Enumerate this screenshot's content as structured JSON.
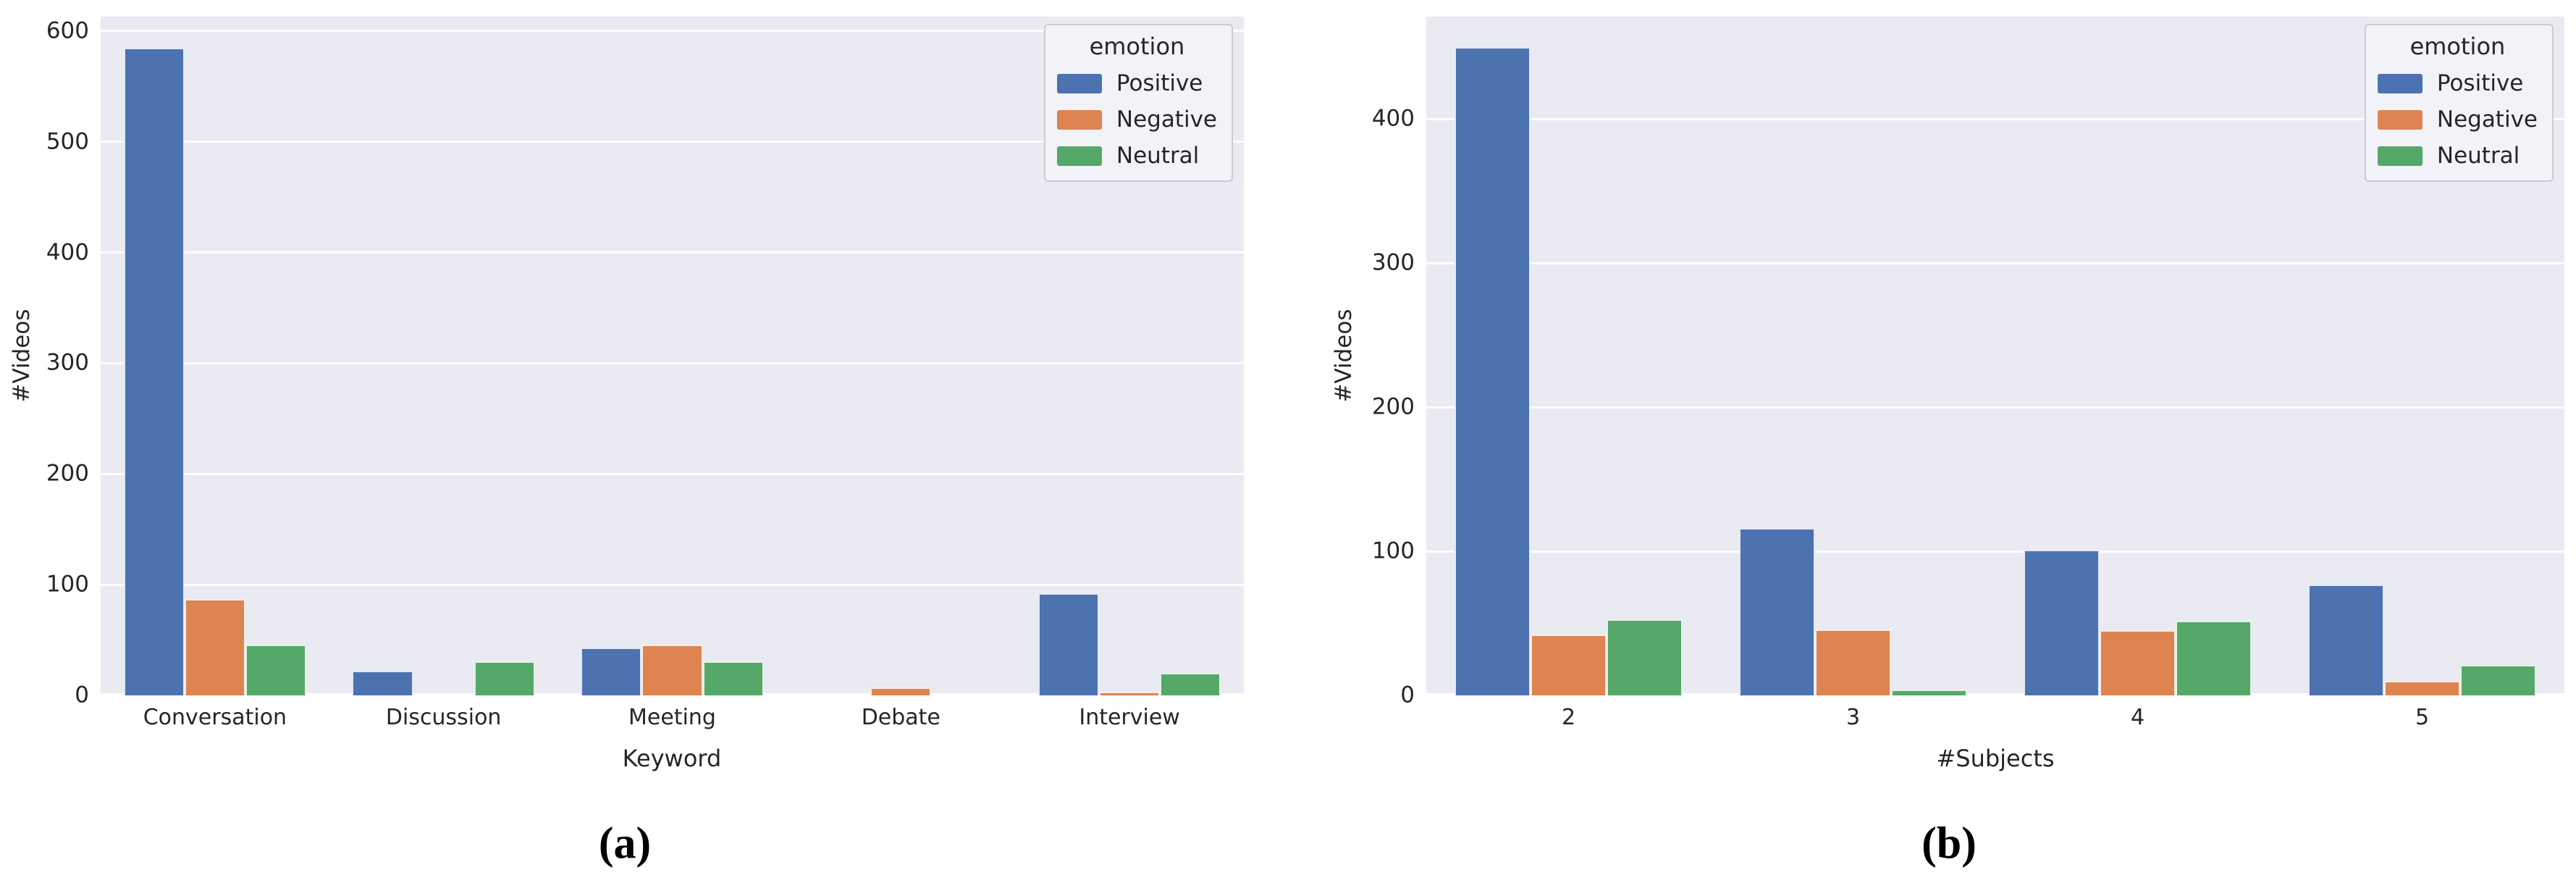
{
  "page": {
    "background": "#ffffff"
  },
  "palette": {
    "series_colors": [
      "#4C72B0",
      "#DD8452",
      "#55A868"
    ],
    "plot_bg": "#EAEAF2",
    "grid_color": "#FFFFFF",
    "text_color": "#262626",
    "legend_bg": "#F2F3F9",
    "legend_border": "#CCCCCC"
  },
  "legend": {
    "title": "emotion",
    "entries": [
      "Positive",
      "Negative",
      "Neutral"
    ]
  },
  "chart_data": [
    {
      "id": "a",
      "type": "bar",
      "caption": "(a)",
      "xlabel": "Keyword",
      "ylabel": "#Videos",
      "categories": [
        "Conversation",
        "Discussion",
        "Meeting",
        "Debate",
        "Interview"
      ],
      "series": [
        {
          "name": "Positive",
          "values": [
            585,
            22,
            43,
            0,
            92
          ]
        },
        {
          "name": "Negative",
          "values": [
            87,
            0,
            46,
            7,
            3
          ]
        },
        {
          "name": "Neutral",
          "values": [
            46,
            31,
            31,
            0,
            20
          ]
        }
      ],
      "ylim": [
        0,
        613
      ],
      "yticks": [
        0,
        100,
        200,
        300,
        400,
        500,
        600
      ],
      "grid": true,
      "legend_position": "upper right"
    },
    {
      "id": "b",
      "type": "bar",
      "caption": "(b)",
      "xlabel": "#Subjects",
      "ylabel": "#Videos",
      "categories": [
        "2",
        "3",
        "4",
        "5"
      ],
      "series": [
        {
          "name": "Positive",
          "values": [
            450,
            116,
            101,
            77
          ]
        },
        {
          "name": "Negative",
          "values": [
            42,
            46,
            45,
            10
          ]
        },
        {
          "name": "Neutral",
          "values": [
            53,
            4,
            52,
            21
          ]
        }
      ],
      "ylim": [
        0,
        471
      ],
      "yticks": [
        0,
        100,
        200,
        300,
        400
      ],
      "grid": true,
      "legend_position": "upper right"
    }
  ]
}
